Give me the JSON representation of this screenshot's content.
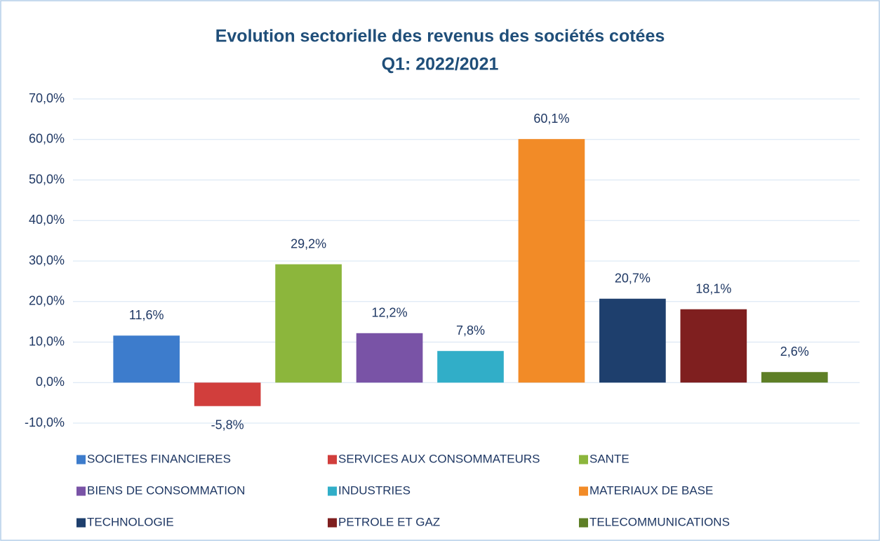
{
  "chart_data": {
    "type": "bar",
    "title": "Evolution sectorielle des revenus des sociétés cotées",
    "subtitle": "Q1: 2022/2021",
    "series": [
      {
        "name": "SOCIETES FINANCIERES",
        "color": "#3d7ccc",
        "values": [
          11.6
        ],
        "value_labels": [
          "11,6%"
        ]
      },
      {
        "name": "SERVICES AUX CONSOMMATEURS",
        "color": "#d13e3c",
        "values": [
          -5.8
        ],
        "value_labels": [
          "-5,8%"
        ]
      },
      {
        "name": "SANTE",
        "color": "#8cb63c",
        "values": [
          29.2
        ],
        "value_labels": [
          "29,2%"
        ]
      },
      {
        "name": "BIENS DE CONSOMMATION",
        "color": "#7953a6",
        "values": [
          12.2
        ],
        "value_labels": [
          "12,2%"
        ]
      },
      {
        "name": "INDUSTRIES",
        "color": "#31aec8",
        "values": [
          7.8
        ],
        "value_labels": [
          "7,8%"
        ]
      },
      {
        "name": "MATERIAUX DE BASE",
        "color": "#f28b27",
        "values": [
          60.1
        ],
        "value_labels": [
          "60,1%"
        ]
      },
      {
        "name": "TECHNOLOGIE",
        "color": "#1e3f6d",
        "values": [
          20.7
        ],
        "value_labels": [
          "20,7%"
        ]
      },
      {
        "name": "PETROLE ET GAZ",
        "color": "#7f1f1f",
        "values": [
          18.1
        ],
        "value_labels": [
          "18,1%"
        ]
      },
      {
        "name": "TELECOMMUNICATIONS",
        "color": "#5e7f26",
        "values": [
          2.6
        ],
        "value_labels": [
          "2,6%"
        ]
      }
    ],
    "ylim": [
      -10,
      70
    ],
    "yticks": [
      {
        "value": -10,
        "label": "-10,0%"
      },
      {
        "value": 0,
        "label": "0,0%"
      },
      {
        "value": 10,
        "label": "10,0%"
      },
      {
        "value": 20,
        "label": "20,0%"
      },
      {
        "value": 30,
        "label": "30,0%"
      },
      {
        "value": 40,
        "label": "40,0%"
      },
      {
        "value": 50,
        "label": "50,0%"
      },
      {
        "value": 60,
        "label": "60,0%"
      },
      {
        "value": 70,
        "label": "70,0%"
      }
    ],
    "grid": true,
    "legend": "bottom"
  }
}
